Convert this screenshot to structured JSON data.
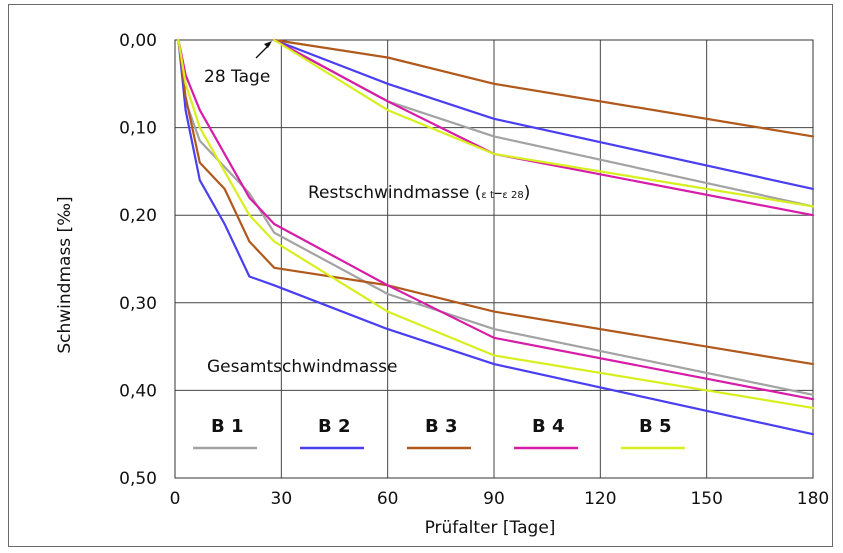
{
  "chart_data": {
    "type": "line",
    "xlabel": "Prüfalter [Tage]",
    "ylabel": "Schwindmass [‰]",
    "xlim": [
      0,
      180
    ],
    "ylim": [
      0,
      0.5
    ],
    "y_inverted": true,
    "grid": true,
    "x_ticks": [
      0,
      30,
      60,
      90,
      120,
      150,
      180
    ],
    "x_tick_labels": [
      "0",
      "30",
      "60",
      "90",
      "120",
      "150",
      "180"
    ],
    "y_ticks": [
      0,
      0.1,
      0.2,
      0.3,
      0.4,
      0.5
    ],
    "y_tick_labels": [
      "0,00",
      "0,10",
      "0,20",
      "0,30",
      "0,40",
      "0,50"
    ],
    "annotations": {
      "marker_28": "28 Tage",
      "rest_label": "Restschwindmasse (",
      "rest_eps_t": "ε t",
      "rest_dash": "–",
      "rest_eps_28": "ε 28",
      "rest_close": ")",
      "total_label": "Gesamtschwindmasse"
    },
    "legend_placement": "bottom-left",
    "series": [
      {
        "name": "B 1",
        "color": "#a3a3a3",
        "total": {
          "x": [
            1,
            3,
            7,
            21,
            28,
            60,
            90,
            180
          ],
          "y": [
            0,
            0.07,
            0.115,
            0.175,
            0.22,
            0.29,
            0.33,
            0.405
          ]
        },
        "rest": {
          "x": [
            28,
            60,
            90,
            180
          ],
          "y": [
            0,
            0.07,
            0.11,
            0.19
          ]
        }
      },
      {
        "name": "B 2",
        "color": "#4a3ff0",
        "total": {
          "x": [
            1,
            3,
            7,
            14,
            21,
            28,
            60,
            90,
            180
          ],
          "y": [
            0,
            0.08,
            0.16,
            0.21,
            0.27,
            0.28,
            0.33,
            0.37,
            0.45
          ]
        },
        "rest": {
          "x": [
            28,
            60,
            90,
            180
          ],
          "y": [
            0,
            0.05,
            0.09,
            0.17
          ]
        }
      },
      {
        "name": "B 3",
        "color": "#b1591c",
        "total": {
          "x": [
            1,
            3,
            7,
            14,
            21,
            28,
            60,
            90,
            180
          ],
          "y": [
            0,
            0.065,
            0.14,
            0.17,
            0.23,
            0.26,
            0.28,
            0.31,
            0.37
          ]
        },
        "rest": {
          "x": [
            28,
            60,
            90,
            180
          ],
          "y": [
            0,
            0.02,
            0.05,
            0.11
          ]
        }
      },
      {
        "name": "B 4",
        "color": "#d61ca8",
        "total": {
          "x": [
            1,
            3,
            7,
            14,
            21,
            28,
            60,
            90,
            180
          ],
          "y": [
            0,
            0.04,
            0.08,
            0.13,
            0.18,
            0.21,
            0.28,
            0.34,
            0.41
          ]
        },
        "rest": {
          "x": [
            28,
            60,
            90,
            180
          ],
          "y": [
            0,
            0.07,
            0.13,
            0.2
          ]
        }
      },
      {
        "name": "B 5",
        "color": "#d7ef1e",
        "total": {
          "x": [
            1,
            3,
            7,
            14,
            21,
            28,
            60,
            90,
            180
          ],
          "y": [
            0,
            0.05,
            0.1,
            0.15,
            0.2,
            0.23,
            0.31,
            0.36,
            0.42
          ]
        },
        "rest": {
          "x": [
            28,
            60,
            90,
            180
          ],
          "y": [
            0,
            0.08,
            0.13,
            0.19
          ]
        }
      }
    ]
  }
}
